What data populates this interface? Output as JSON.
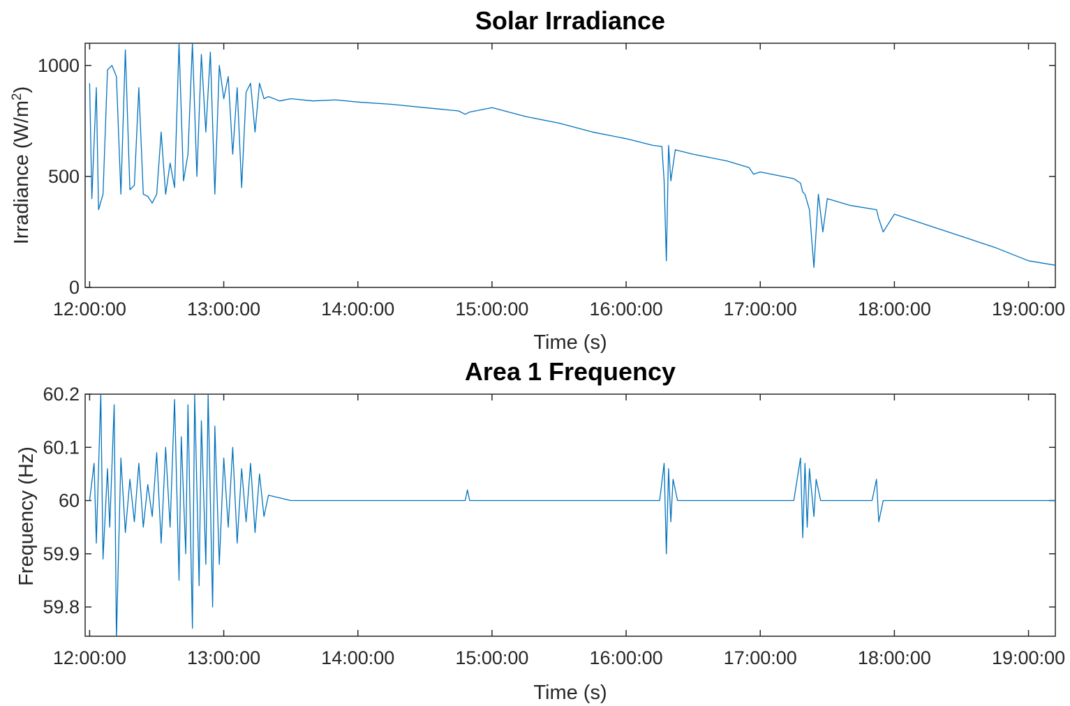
{
  "chart_data": [
    {
      "type": "line",
      "title": "Solar Irradiance",
      "xlabel": "Time (s)",
      "ylabel": "Irradiance (W/m",
      "ylabel_sup": "2",
      "ylabel_suffix": ")",
      "xlim": [
        "11:58:00",
        "19:12:00"
      ],
      "ylim": [
        0,
        1100
      ],
      "xticks": [
        "12:00:00",
        "13:00:00",
        "14:00:00",
        "15:00:00",
        "16:00:00",
        "17:00:00",
        "18:00:00",
        "19:00:00"
      ],
      "yticks": [
        0,
        500,
        1000
      ],
      "grid": false,
      "color": "#0072BD",
      "series": [
        {
          "x": [
            "12:00:00",
            "12:01:00",
            "12:03:00",
            "12:04:00",
            "12:06:00",
            "12:08:00",
            "12:10:00",
            "12:12:00",
            "12:14:00",
            "12:16:00",
            "12:18:00",
            "12:20:00",
            "12:22:00",
            "12:24:00",
            "12:26:00",
            "12:28:00",
            "12:30:00",
            "12:32:00",
            "12:34:00",
            "12:36:00",
            "12:38:00",
            "12:40:00",
            "12:42:00",
            "12:44:00",
            "12:46:00",
            "12:48:00",
            "12:50:00",
            "12:52:00",
            "12:54:00",
            "12:56:00",
            "12:58:00",
            "13:00:00",
            "13:02:00",
            "13:04:00",
            "13:06:00",
            "13:08:00",
            "13:10:00",
            "13:12:00",
            "13:14:00",
            "13:16:00",
            "13:18:00",
            "13:20:00",
            "13:25:00",
            "13:30:00",
            "13:40:00",
            "13:50:00",
            "14:00:00",
            "14:15:00",
            "14:30:00",
            "14:45:00",
            "14:48:00",
            "14:50:00",
            "14:55:00",
            "15:00:00",
            "15:15:00",
            "15:30:00",
            "15:45:00",
            "16:00:00",
            "16:12:00",
            "16:16:00",
            "16:17:00",
            "16:18:00",
            "16:19:00",
            "16:20:00",
            "16:22:00",
            "16:30:00",
            "16:45:00",
            "16:55:00",
            "16:57:00",
            "17:00:00",
            "17:15:00",
            "17:18:00",
            "17:19:00",
            "17:20:00",
            "17:22:00",
            "17:24:00",
            "17:26:00",
            "17:28:00",
            "17:30:00",
            "17:40:00",
            "17:52:00",
            "17:53:00",
            "17:55:00",
            "18:00:00",
            "18:15:00",
            "18:30:00",
            "18:45:00",
            "19:00:00",
            "19:12:00"
          ],
          "y": [
            920,
            400,
            900,
            350,
            420,
            980,
            1000,
            950,
            420,
            1070,
            440,
            460,
            900,
            420,
            410,
            380,
            420,
            700,
            420,
            560,
            450,
            1100,
            480,
            600,
            1100,
            500,
            1050,
            700,
            1060,
            420,
            1000,
            850,
            950,
            600,
            900,
            450,
            880,
            920,
            700,
            920,
            850,
            860,
            840,
            850,
            840,
            845,
            835,
            825,
            810,
            795,
            780,
            790,
            800,
            810,
            770,
            740,
            700,
            670,
            640,
            635,
            480,
            120,
            640,
            480,
            620,
            600,
            570,
            540,
            510,
            520,
            490,
            470,
            430,
            420,
            350,
            90,
            420,
            250,
            400,
            370,
            350,
            310,
            250,
            330,
            280,
            230,
            180,
            120,
            100
          ]
        }
      ]
    },
    {
      "type": "line",
      "title": "Area 1 Frequency",
      "xlabel": "Time (s)",
      "ylabel": "Frequency (Hz)",
      "xlim": [
        "11:58:00",
        "19:12:00"
      ],
      "ylim": [
        59.745,
        60.2
      ],
      "xticks": [
        "12:00:00",
        "13:00:00",
        "14:00:00",
        "15:00:00",
        "16:00:00",
        "17:00:00",
        "18:00:00",
        "19:00:00"
      ],
      "yticks": [
        59.8,
        59.9,
        60,
        60.1,
        60.2
      ],
      "grid": false,
      "color": "#0072BD",
      "series": [
        {
          "x": [
            "12:00:00",
            "12:02:00",
            "12:03:00",
            "12:05:00",
            "12:06:00",
            "12:08:00",
            "12:09:00",
            "12:11:00",
            "12:12:00",
            "12:14:00",
            "12:16:00",
            "12:18:00",
            "12:20:00",
            "12:22:00",
            "12:24:00",
            "12:26:00",
            "12:28:00",
            "12:30:00",
            "12:32:00",
            "12:34:00",
            "12:36:00",
            "12:38:00",
            "12:40:00",
            "12:41:00",
            "12:43:00",
            "12:44:00",
            "12:46:00",
            "12:47:00",
            "12:49:00",
            "12:50:00",
            "12:52:00",
            "12:53:00",
            "12:55:00",
            "12:56:00",
            "12:58:00",
            "13:00:00",
            "13:02:00",
            "13:04:00",
            "13:06:00",
            "13:08:00",
            "13:10:00",
            "13:12:00",
            "13:14:00",
            "13:16:00",
            "13:18:00",
            "13:20:00",
            "13:30:00",
            "14:00:00",
            "14:30:00",
            "14:48:00",
            "14:49:00",
            "14:50:00",
            "15:00:00",
            "15:30:00",
            "16:00:00",
            "16:15:00",
            "16:17:00",
            "16:18:00",
            "16:19:00",
            "16:20:00",
            "16:21:00",
            "16:23:00",
            "16:30:00",
            "17:00:00",
            "17:15:00",
            "17:18:00",
            "17:19:00",
            "17:20:00",
            "17:21:00",
            "17:22:00",
            "17:24:00",
            "17:25:00",
            "17:27:00",
            "17:35:00",
            "17:50:00",
            "17:52:00",
            "17:53:00",
            "17:55:00",
            "18:00:00",
            "18:30:00",
            "19:00:00",
            "19:12:00"
          ],
          "y": [
            60.0,
            60.07,
            59.92,
            60.2,
            59.89,
            60.06,
            59.95,
            60.18,
            59.74,
            60.08,
            59.94,
            60.04,
            59.96,
            60.07,
            59.95,
            60.03,
            59.97,
            60.09,
            59.92,
            60.1,
            59.95,
            60.19,
            59.85,
            60.12,
            59.9,
            60.18,
            59.76,
            60.2,
            59.84,
            60.15,
            59.88,
            60.2,
            59.8,
            60.14,
            59.88,
            60.08,
            59.95,
            60.1,
            59.92,
            60.06,
            59.96,
            60.07,
            59.94,
            60.05,
            59.97,
            60.01,
            60.0,
            60.0,
            60.0,
            60.0,
            60.02,
            60.0,
            60.0,
            60.0,
            60.0,
            60.0,
            60.07,
            59.9,
            60.06,
            59.96,
            60.04,
            60.0,
            60.0,
            60.0,
            60.0,
            60.08,
            59.93,
            60.07,
            59.95,
            60.06,
            59.97,
            60.04,
            60.0,
            60.0,
            60.0,
            60.04,
            59.96,
            60.0,
            60.0,
            60.0,
            60.0,
            60.0
          ]
        }
      ]
    }
  ]
}
